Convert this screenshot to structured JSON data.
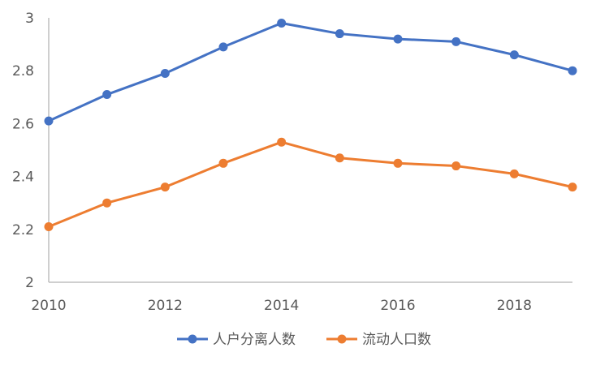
{
  "chart_data": {
    "type": "line",
    "x": [
      2010,
      2011,
      2012,
      2013,
      2014,
      2015,
      2016,
      2017,
      2018,
      2019
    ],
    "x_tick_labels": [
      "2010",
      "2012",
      "2014",
      "2016",
      "2018"
    ],
    "x_tick_values": [
      2010,
      2012,
      2014,
      2016,
      2018
    ],
    "y_tick_labels": [
      "2",
      "2.2",
      "2.4",
      "2.6",
      "2.8",
      "3"
    ],
    "y_tick_values": [
      2,
      2.2,
      2.4,
      2.6,
      2.8,
      3
    ],
    "ylim": [
      2,
      3
    ],
    "grid": false,
    "legend_position": "bottom",
    "series": [
      {
        "name": "人户分离人数",
        "color": "#4472C4",
        "values": [
          2.61,
          2.71,
          2.79,
          2.89,
          2.98,
          2.94,
          2.92,
          2.91,
          2.86,
          2.8
        ]
      },
      {
        "name": "流动人口数",
        "color": "#ED7D31",
        "values": [
          2.21,
          2.3,
          2.36,
          2.45,
          2.53,
          2.47,
          2.45,
          2.44,
          2.41,
          2.36
        ]
      }
    ],
    "axis_color": "#BFBFBF"
  }
}
